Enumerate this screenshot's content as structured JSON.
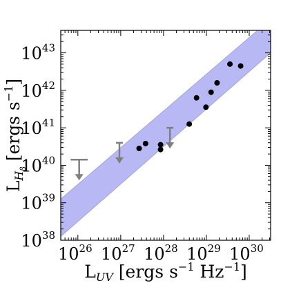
{
  "chart_data": {
    "type": "scatter",
    "xlabel": "L_UV [ergs s^-1 Hz^-1]",
    "ylabel": "L_Hβ [ergs s^-1]",
    "x_scale": "log",
    "y_scale": "log",
    "xlim_log10": [
      25.6,
      30.5
    ],
    "ylim_log10": [
      38.0,
      43.6
    ],
    "x_ticks": [
      {
        "mant": "10",
        "exp": "26",
        "value": 26
      },
      {
        "mant": "10",
        "exp": "27",
        "value": 27
      },
      {
        "mant": "10",
        "exp": "28",
        "value": 28
      },
      {
        "mant": "10",
        "exp": "29",
        "value": 29
      },
      {
        "mant": "10",
        "exp": "30",
        "value": 30
      }
    ],
    "y_ticks": [
      {
        "mant": "10",
        "exp": "38",
        "value": 38
      },
      {
        "mant": "10",
        "exp": "39",
        "value": 39
      },
      {
        "mant": "10",
        "exp": "40",
        "value": 40
      },
      {
        "mant": "10",
        "exp": "41",
        "value": 41
      },
      {
        "mant": "10",
        "exp": "42",
        "value": 42
      },
      {
        "mant": "10",
        "exp": "43",
        "value": 43
      }
    ],
    "band": {
      "color": "#b8b8f4",
      "edge_color": "#9a9ad6",
      "slope": 1.0,
      "upper": [
        [
          25.6,
          39.1
        ],
        [
          30.5,
          43.9
        ]
      ],
      "lower": [
        [
          25.6,
          38.1
        ],
        [
          30.5,
          43.0
        ]
      ]
    },
    "points_log10": [
      [
        27.43,
        40.45
      ],
      [
        27.58,
        40.58
      ],
      [
        27.93,
        40.55
      ],
      [
        27.93,
        40.42
      ],
      [
        28.6,
        41.1
      ],
      [
        28.77,
        41.8
      ],
      [
        28.99,
        41.55
      ],
      [
        29.11,
        41.95
      ],
      [
        29.25,
        42.2
      ],
      [
        29.55,
        42.7
      ],
      [
        29.8,
        42.65
      ]
    ],
    "point_color": "#000000",
    "upper_limits_log10": [
      {
        "x": 26.03,
        "y": 40.15,
        "cap_half_width": 0.2
      },
      {
        "x": 26.97,
        "y": 40.6,
        "cap_half_width": 0.08
      },
      {
        "x": 28.15,
        "y": 41.0,
        "cap_half_width": 0.08
      }
    ],
    "limit_color": "#7f7f7f",
    "grid": false,
    "legend": null
  }
}
